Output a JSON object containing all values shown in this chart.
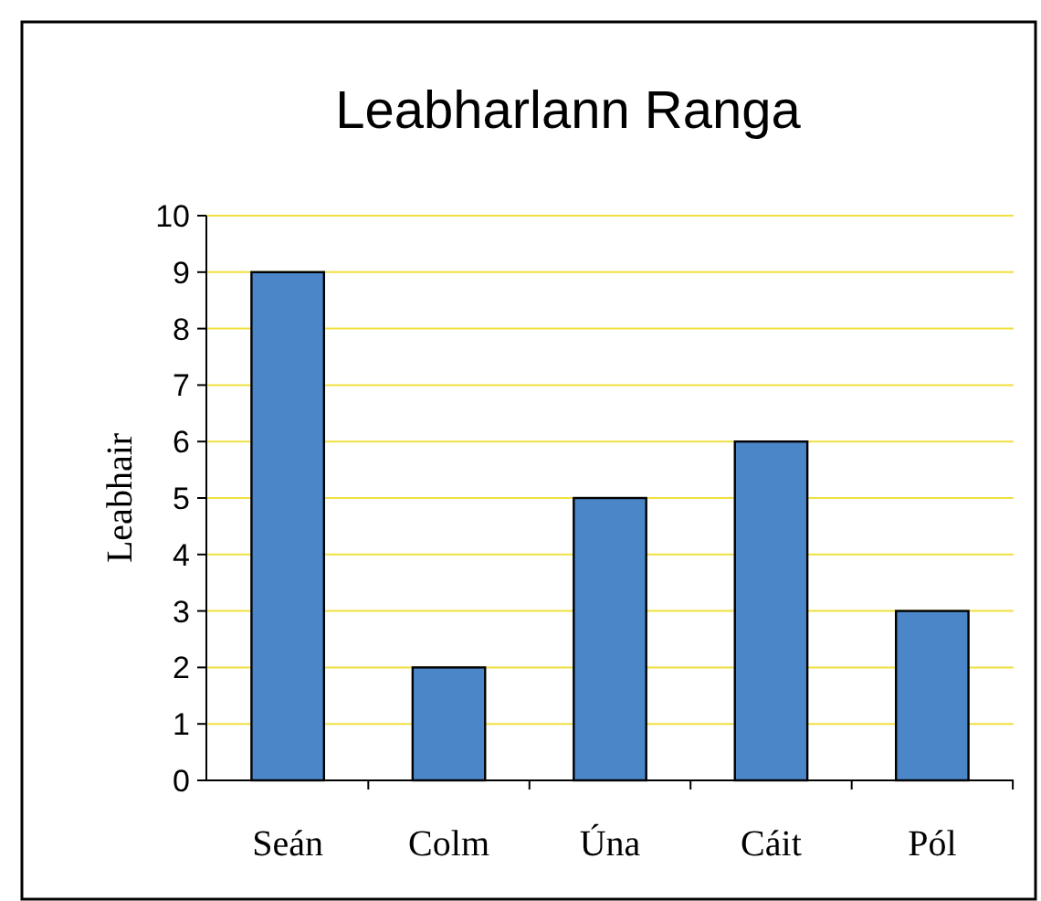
{
  "chart_data": {
    "type": "bar",
    "title": "Leabharlann Ranga",
    "ylabel": "Leabhair",
    "categories": [
      "Seán",
      "Colm",
      "Úna",
      "Cáit",
      "Pól"
    ],
    "values": [
      9,
      2,
      5,
      6,
      3
    ],
    "color": "#4a86c8",
    "ylim": [
      0,
      10
    ],
    "yticks": [
      0,
      1,
      2,
      3,
      4,
      5,
      6,
      7,
      8,
      9,
      10
    ],
    "grid": "y"
  }
}
